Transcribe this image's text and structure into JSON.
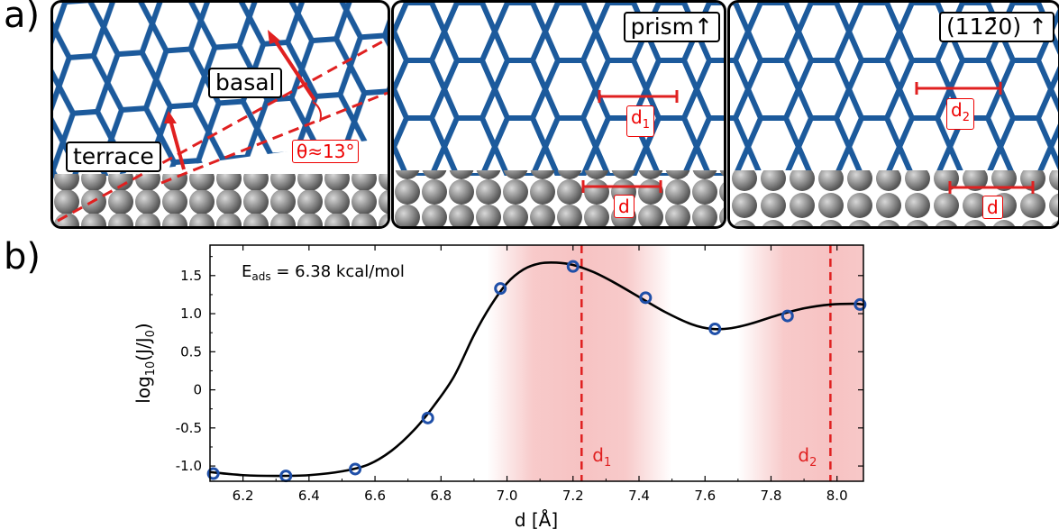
{
  "panel_a": {
    "label": "a)",
    "left": {
      "basal_label": "basal",
      "terrace_label": "terrace",
      "angle_label": "θ≈13°"
    },
    "middle": {
      "tag": "prism",
      "d1_label": "d",
      "d1_sub": "1",
      "d_label": "d"
    },
    "right": {
      "tag": "(11",
      "tag_bar_digit": "2̄",
      "tag_end": "0)",
      "d2_label": "d",
      "d2_sub": "2",
      "d_label": "d"
    }
  },
  "panel_b": {
    "label": "b)"
  },
  "chart_data": {
    "type": "line",
    "xlabel": "d [Å]",
    "ylabel": "log10(J/J0)",
    "xlim": [
      6.1,
      8.08
    ],
    "ylim": [
      -1.2,
      1.9
    ],
    "xticks": [
      6.2,
      6.4,
      6.6,
      6.8,
      7.0,
      7.2,
      7.4,
      7.6,
      7.8,
      8.0
    ],
    "xtick_labels": [
      "6.2",
      "6.4",
      "6.6",
      "6.8",
      "7.0",
      "7.2",
      "7.4",
      "7.6",
      "7.8",
      "8.0"
    ],
    "yticks": [
      -1.0,
      -0.5,
      0,
      0.5,
      1.0,
      1.5
    ],
    "ytick_labels": [
      "-1.0",
      "-0.5",
      "0",
      "0.5",
      "1.0",
      "1.5"
    ],
    "annotation": {
      "E": "E",
      "sub": "ads",
      "rest": " = 6.38 kcal/mol"
    },
    "points": {
      "x": [
        6.11,
        6.33,
        6.54,
        6.76,
        6.98,
        7.2,
        7.42,
        7.63,
        7.85,
        8.07
      ],
      "y": [
        -1.1,
        -1.13,
        -1.04,
        -0.37,
        1.33,
        1.62,
        1.21,
        0.8,
        0.97,
        1.12
      ]
    },
    "curve": {
      "x": [
        6.1,
        6.2,
        6.3,
        6.4,
        6.5,
        6.58,
        6.65,
        6.72,
        6.78,
        6.84,
        6.9,
        6.95,
        7.0,
        7.05,
        7.1,
        7.15,
        7.2,
        7.26,
        7.32,
        7.4,
        7.48,
        7.56,
        7.62,
        7.68,
        7.74,
        7.82,
        7.9,
        7.98,
        8.05,
        8.08
      ],
      "y": [
        -1.08,
        -1.12,
        -1.13,
        -1.12,
        -1.07,
        -0.98,
        -0.8,
        -0.52,
        -0.2,
        0.18,
        0.72,
        1.1,
        1.4,
        1.58,
        1.66,
        1.67,
        1.64,
        1.55,
        1.42,
        1.22,
        1.02,
        0.86,
        0.8,
        0.81,
        0.87,
        0.98,
        1.07,
        1.12,
        1.13,
        1.12
      ]
    },
    "shaded_bands": [
      {
        "center": 7.22,
        "halfwidth": 0.28
      },
      {
        "center": 7.98,
        "halfwidth": 0.28
      }
    ],
    "vlines": [
      {
        "x": 7.226,
        "label": "d",
        "sub": "1"
      },
      {
        "x": 7.98,
        "label": "d",
        "sub": "2"
      }
    ],
    "colors": {
      "curve": "#000000",
      "marker": "#1f4fa8",
      "vline": "#e02020",
      "band": "#f5b8b8"
    }
  }
}
